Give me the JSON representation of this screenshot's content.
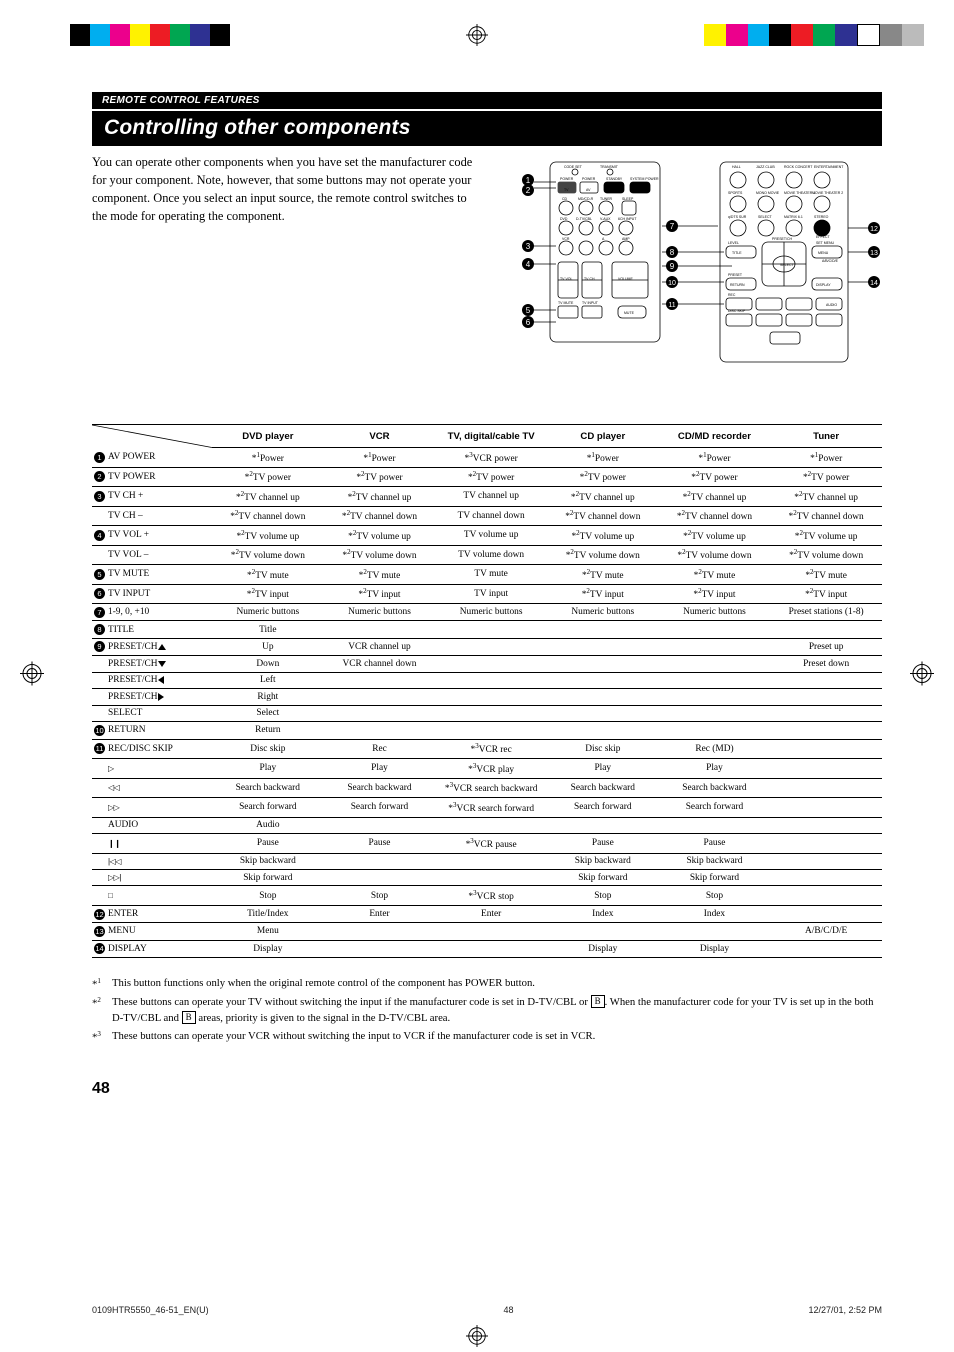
{
  "section_header": "REMOTE CONTROL FEATURES",
  "page_title": "Controlling other components",
  "intro": "You can operate other components when you have set the manufacturer code for your component. Note, however, that some buttons may not operate your component. Once you select an input source, the remote control switches to the mode for operating the component.",
  "columns": [
    "DVD player",
    "VCR",
    "TV, digital/cable TV",
    "CD player",
    "CD/MD recorder",
    "Tuner"
  ],
  "rows": [
    {
      "num": "1",
      "label": "AV POWER",
      "cells": [
        "*¹Power",
        "*¹Power",
        "*³VCR power",
        "*¹Power",
        "*¹Power",
        "*¹Power"
      ]
    },
    {
      "num": "2",
      "label": "TV POWER",
      "cells": [
        "*²TV power",
        "*²TV power",
        "*²TV power",
        "*²TV power",
        "*²TV power",
        "*²TV power"
      ]
    },
    {
      "num": "3",
      "label": "TV CH +",
      "cells": [
        "*²TV channel up",
        "*²TV channel up",
        "TV channel up",
        "*²TV channel up",
        "*²TV channel up",
        "*²TV channel up"
      ]
    },
    {
      "num": "",
      "label": "TV CH –",
      "cells": [
        "*²TV channel down",
        "*²TV channel down",
        "TV channel down",
        "*²TV channel down",
        "*²TV channel down",
        "*²TV channel down"
      ]
    },
    {
      "num": "4",
      "label": "TV VOL +",
      "cells": [
        "*²TV volume up",
        "*²TV volume up",
        "TV volume up",
        "*²TV volume up",
        "*²TV volume up",
        "*²TV volume up"
      ]
    },
    {
      "num": "",
      "label": "TV VOL –",
      "cells": [
        "*²TV volume down",
        "*²TV volume down",
        "TV volume down",
        "*²TV volume down",
        "*²TV volume down",
        "*²TV volume down"
      ]
    },
    {
      "num": "5",
      "label": "TV MUTE",
      "cells": [
        "*²TV mute",
        "*²TV mute",
        "TV mute",
        "*²TV mute",
        "*²TV mute",
        "*²TV mute"
      ]
    },
    {
      "num": "6",
      "label": "TV INPUT",
      "cells": [
        "*²TV input",
        "*²TV input",
        "TV input",
        "*²TV input",
        "*²TV input",
        "*²TV input"
      ]
    },
    {
      "num": "7",
      "label": "1-9, 0, +10",
      "cells": [
        "Numeric buttons",
        "Numeric buttons",
        "Numeric buttons",
        "Numeric buttons",
        "Numeric buttons",
        "Preset stations (1-8)"
      ]
    },
    {
      "num": "8",
      "label": "TITLE",
      "cells": [
        "Title",
        "",
        "",
        "",
        "",
        ""
      ]
    },
    {
      "num": "9",
      "label": "PRESET/CH ",
      "suffix": "chev-up",
      "cells": [
        "Up",
        "VCR channel up",
        "",
        "",
        "",
        "Preset up"
      ]
    },
    {
      "num": "",
      "label": "PRESET/CH ",
      "suffix": "chev-down",
      "cells": [
        "Down",
        "VCR channel down",
        "",
        "",
        "",
        "Preset down"
      ]
    },
    {
      "num": "",
      "label": "PRESET/CH ",
      "suffix": "chev-left",
      "cells": [
        "Left",
        "",
        "",
        "",
        "",
        ""
      ]
    },
    {
      "num": "",
      "label": "PRESET/CH ",
      "suffix": "chev-right",
      "cells": [
        "Right",
        "",
        "",
        "",
        "",
        ""
      ]
    },
    {
      "num": "",
      "label": "SELECT",
      "cells": [
        "Select",
        "",
        "",
        "",
        "",
        ""
      ]
    },
    {
      "num": "10",
      "label": "RETURN",
      "cells": [
        "Return",
        "",
        "",
        "",
        "",
        ""
      ]
    },
    {
      "num": "11",
      "label": "REC/DISC SKIP",
      "cells": [
        "Disc skip",
        "Rec",
        "*³VCR rec",
        "Disc skip",
        "Rec (MD)",
        ""
      ]
    },
    {
      "num": "",
      "label": "",
      "sym": "▷",
      "cells": [
        "Play",
        "Play",
        "*³VCR play",
        "Play",
        "Play",
        ""
      ]
    },
    {
      "num": "",
      "label": "",
      "sym": "◁◁",
      "cells": [
        "Search backward",
        "Search backward",
        "*³VCR search backward",
        "Search backward",
        "Search backward",
        ""
      ]
    },
    {
      "num": "",
      "label": "",
      "sym": "▷▷",
      "cells": [
        "Search forward",
        "Search forward",
        "*³VCR search forward",
        "Search forward",
        "Search forward",
        ""
      ]
    },
    {
      "num": "",
      "label": "AUDIO",
      "cells": [
        "Audio",
        "",
        "",
        "",
        "",
        ""
      ]
    },
    {
      "num": "",
      "label": "",
      "sym": "❙❙",
      "cells": [
        "Pause",
        "Pause",
        "*³VCR pause",
        "Pause",
        "Pause",
        ""
      ]
    },
    {
      "num": "",
      "label": "",
      "sym": "|◁◁",
      "cells": [
        "Skip backward",
        "",
        "",
        "Skip backward",
        "Skip backward",
        ""
      ]
    },
    {
      "num": "",
      "label": "",
      "sym": "▷▷|",
      "cells": [
        "Skip forward",
        "",
        "",
        "Skip forward",
        "Skip forward",
        ""
      ]
    },
    {
      "num": "",
      "label": "",
      "sym": "□",
      "cells": [
        "Stop",
        "Stop",
        "*³VCR stop",
        "Stop",
        "Stop",
        ""
      ]
    },
    {
      "num": "12",
      "label": "ENTER",
      "cells": [
        "Title/Index",
        "Enter",
        "Enter",
        "Index",
        "Index",
        ""
      ]
    },
    {
      "num": "13",
      "label": "MENU",
      "cells": [
        "Menu",
        "",
        "",
        "",
        "",
        "A/B/C/D/E"
      ]
    },
    {
      "num": "14",
      "label": "DISPLAY",
      "cells": [
        "Display",
        "",
        "",
        "Display",
        "Display",
        ""
      ]
    }
  ],
  "footnotes": [
    {
      "mark": "*¹",
      "text": "This button functions only when the original remote control of the component has POWER button."
    },
    {
      "mark": "*²",
      "text": "These buttons can operate your TV without switching the input if the manufacturer code is set in D-TV/CBL or [B]. When the manufacturer code for your TV is set up in the both D-TV/CBL and [B] areas, priority is given to the signal in the D-TV/CBL area."
    },
    {
      "mark": "*³",
      "text": "These buttons can operate your VCR without switching the input to VCR if the manufacturer code is set in VCR."
    }
  ],
  "page_number": "48",
  "cmyk_colors": [
    "#000000",
    "#ec008c",
    "#00aeef",
    "#fff200",
    "#ed1c24",
    "#00a651",
    "#2e3192",
    "#000000"
  ],
  "footer_left": "0109HTR5550_46-51_EN(U)",
  "footer_mid": "48",
  "footer_right": "12/27/01, 2:52 PM"
}
